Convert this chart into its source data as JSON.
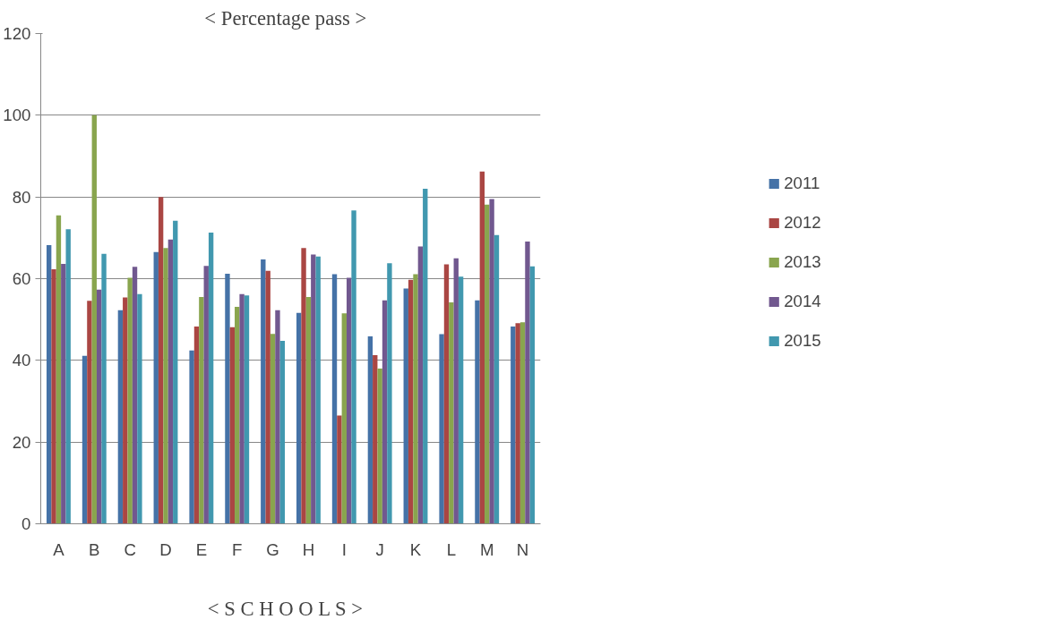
{
  "chart_data": {
    "type": "bar",
    "title": "<  Percentage pass  >",
    "xlabel": "<  S C H O O L S  >",
    "categories": [
      "A",
      "B",
      "C",
      "D",
      "E",
      "F",
      "G",
      "H",
      "I",
      "J",
      "K",
      "L",
      "M",
      "N"
    ],
    "series": [
      {
        "name": "2011",
        "color": "#4572a7",
        "values": [
          68.2,
          41.1,
          52.3,
          66.5,
          42.4,
          61.2,
          64.7,
          51.6,
          61.1,
          45.9,
          57.6,
          46.4,
          54.7,
          48.3
        ]
      },
      {
        "name": "2012",
        "color": "#aa4643",
        "values": [
          62.3,
          54.6,
          55.4,
          80,
          48.3,
          48.1,
          61.9,
          67.5,
          26.5,
          41.3,
          59.7,
          63.5,
          86.2,
          49.1
        ]
      },
      {
        "name": "2013",
        "color": "#89a54e",
        "values": [
          75.5,
          100,
          60.2,
          67.5,
          55.5,
          53.1,
          46.5,
          55.5,
          51.5,
          38.0,
          61.1,
          54.2,
          78.1,
          49.3
        ]
      },
      {
        "name": "2014",
        "color": "#71588f",
        "values": [
          63.6,
          57.3,
          62.9,
          69.6,
          63.1,
          56.2,
          52.3,
          65.9,
          60.2,
          54.7,
          67.9,
          65.0,
          79.5,
          69.1
        ]
      },
      {
        "name": "2015",
        "color": "#4198af",
        "values": [
          72.1,
          66.1,
          56.2,
          74.2,
          71.3,
          55.9,
          44.8,
          65.4,
          76.7,
          63.8,
          82.0,
          60.5,
          70.7,
          63.0
        ]
      },
      {
        "color": "#db843d",
        "values": [
          null,
          null,
          null,
          null,
          null,
          null,
          null,
          null,
          null,
          null,
          null,
          null,
          null,
          null
        ]
      }
    ],
    "ylim": [
      0,
      120
    ],
    "yticks": [
      0,
      20,
      40,
      60,
      80,
      100,
      120
    ],
    "grid": "y",
    "legend": "right"
  }
}
